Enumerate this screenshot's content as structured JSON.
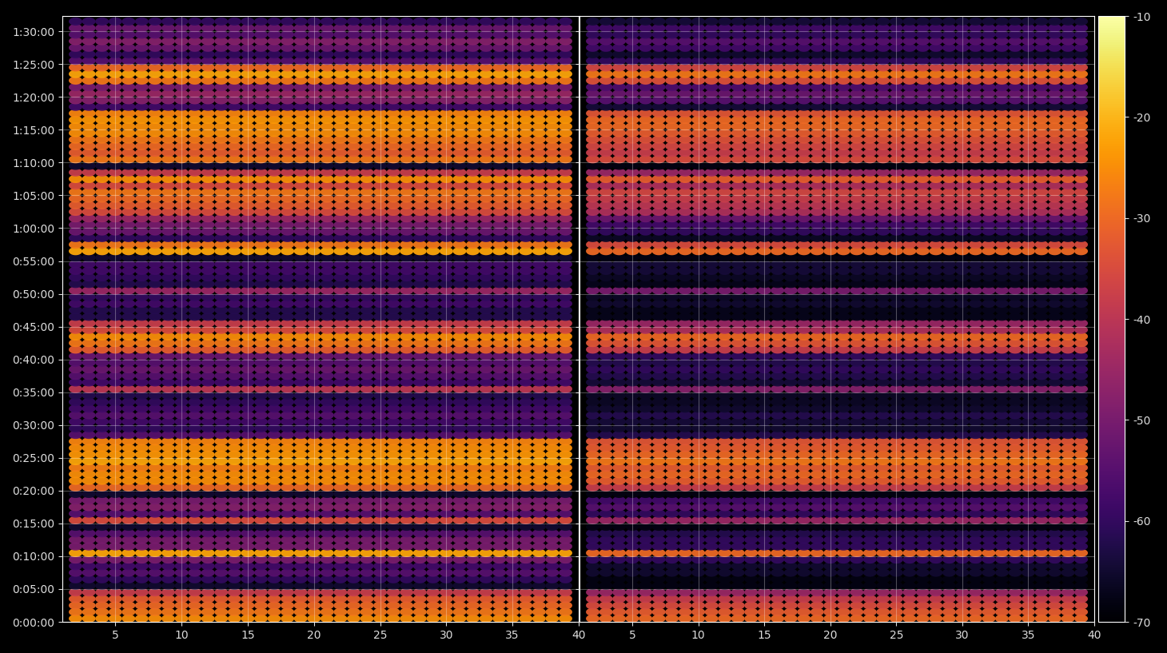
{
  "chart_data": {
    "type": "heatmap",
    "x": [
      2,
      3,
      4,
      5,
      6,
      7,
      8,
      9,
      10,
      11,
      12,
      13,
      14,
      15,
      16,
      17,
      18,
      19,
      20,
      21,
      22,
      23,
      24,
      25,
      26,
      27,
      28,
      29,
      30,
      31,
      32,
      33,
      34,
      35,
      36,
      37,
      38,
      39
    ],
    "y": [
      30,
      90,
      150,
      210,
      270,
      330,
      390,
      450,
      510,
      570,
      630,
      690,
      750,
      810,
      870,
      930,
      990,
      1050,
      1110,
      1170,
      1230,
      1290,
      1350,
      1410,
      1470,
      1530,
      1590,
      1650,
      1710,
      1770,
      1830,
      1890,
      1950,
      2010,
      2070,
      2130,
      2190,
      2250,
      2310,
      2370,
      2430,
      2490,
      2550,
      2610,
      2670,
      2730,
      2790,
      2850,
      2910,
      2970,
      3030,
      3090,
      3150,
      3210,
      3270,
      3330,
      3390,
      3450,
      3510,
      3570,
      3630,
      3690,
      3750,
      3810,
      3870,
      3930,
      3990,
      4050,
      4110,
      4170,
      4230,
      4290,
      4350,
      4410,
      4470,
      4530,
      4590,
      4650,
      4710,
      4770,
      4830,
      4890,
      4950,
      5010,
      5070,
      5130,
      5190,
      5250,
      5310,
      5370,
      5430,
      5490
    ],
    "xlim": [
      1,
      40
    ],
    "xticks": [
      5,
      10,
      15,
      20,
      25,
      30,
      35,
      40
    ],
    "ylim": [
      0,
      5540
    ],
    "yticks": [
      {
        "value": 0,
        "label": "0:00:00"
      },
      {
        "value": 300,
        "label": "0:05:00"
      },
      {
        "value": 600,
        "label": "0:10:00"
      },
      {
        "value": 900,
        "label": "0:15:00"
      },
      {
        "value": 1200,
        "label": "0:20:00"
      },
      {
        "value": 1500,
        "label": "0:25:00"
      },
      {
        "value": 1800,
        "label": "0:30:00"
      },
      {
        "value": 2100,
        "label": "0:35:00"
      },
      {
        "value": 2400,
        "label": "0:40:00"
      },
      {
        "value": 2700,
        "label": "0:45:00"
      },
      {
        "value": 3000,
        "label": "0:50:00"
      },
      {
        "value": 3300,
        "label": "0:55:00"
      },
      {
        "value": 3600,
        "label": "1:00:00"
      },
      {
        "value": 3900,
        "label": "1:05:00"
      },
      {
        "value": 4200,
        "label": "1:10:00"
      },
      {
        "value": 4500,
        "label": "1:15:00"
      },
      {
        "value": 4800,
        "label": "1:20:00"
      },
      {
        "value": 5100,
        "label": "1:25:00"
      },
      {
        "value": 5400,
        "label": "1:30:00"
      }
    ],
    "grid": true,
    "colorbar": {
      "range": [
        -70,
        -10
      ],
      "ticks": [
        -70,
        -60,
        -50,
        -40,
        -30,
        -20,
        -10
      ]
    },
    "panels": [
      {
        "values": [
          -25,
          -28,
          -30,
          -32,
          -38,
          -65,
          -60,
          -55,
          -58,
          -50,
          -22,
          -50,
          -50,
          -55,
          -65,
          -35,
          -55,
          -48,
          -50,
          -65,
          -30,
          -25,
          -25,
          -27,
          -22,
          -24,
          -25,
          -26,
          -55,
          -60,
          -58,
          -55,
          -58,
          -60,
          -62,
          -40,
          -58,
          -55,
          -52,
          -55,
          -52,
          -32,
          -28,
          -25,
          -35,
          -38,
          -62,
          -62,
          -58,
          -60,
          -45,
          -62,
          -60,
          -58,
          -58,
          -65,
          -22,
          -28,
          -60,
          -52,
          -50,
          -45,
          -35,
          -32,
          -30,
          -28,
          -35,
          -25,
          -38,
          -65,
          -28,
          -32,
          -30,
          -28,
          -25,
          -25,
          -24,
          -26,
          -58,
          -48,
          -45,
          -50,
          -28,
          -22,
          -30,
          -55,
          -60,
          -52,
          -48,
          -55,
          -52,
          -60
        ]
      },
      {
        "values": [
          -30,
          -32,
          -35,
          -38,
          -45,
          -68,
          -68,
          -65,
          -65,
          -60,
          -30,
          -60,
          -60,
          -62,
          -68,
          -45,
          -60,
          -55,
          -58,
          -68,
          -38,
          -32,
          -30,
          -32,
          -28,
          -30,
          -32,
          -33,
          -62,
          -65,
          -64,
          -62,
          -65,
          -66,
          -66,
          -48,
          -64,
          -62,
          -60,
          -62,
          -60,
          -38,
          -33,
          -30,
          -42,
          -45,
          -67,
          -67,
          -65,
          -66,
          -50,
          -67,
          -66,
          -64,
          -64,
          -68,
          -30,
          -35,
          -66,
          -60,
          -58,
          -52,
          -42,
          -40,
          -38,
          -36,
          -42,
          -32,
          -45,
          -68,
          -35,
          -38,
          -36,
          -34,
          -32,
          -30,
          -30,
          -33,
          -64,
          -55,
          -52,
          -56,
          -34,
          -28,
          -36,
          -60,
          -65,
          -58,
          -55,
          -60,
          -58,
          -64
        ],
        "tick_labels": "x"
      }
    ]
  }
}
